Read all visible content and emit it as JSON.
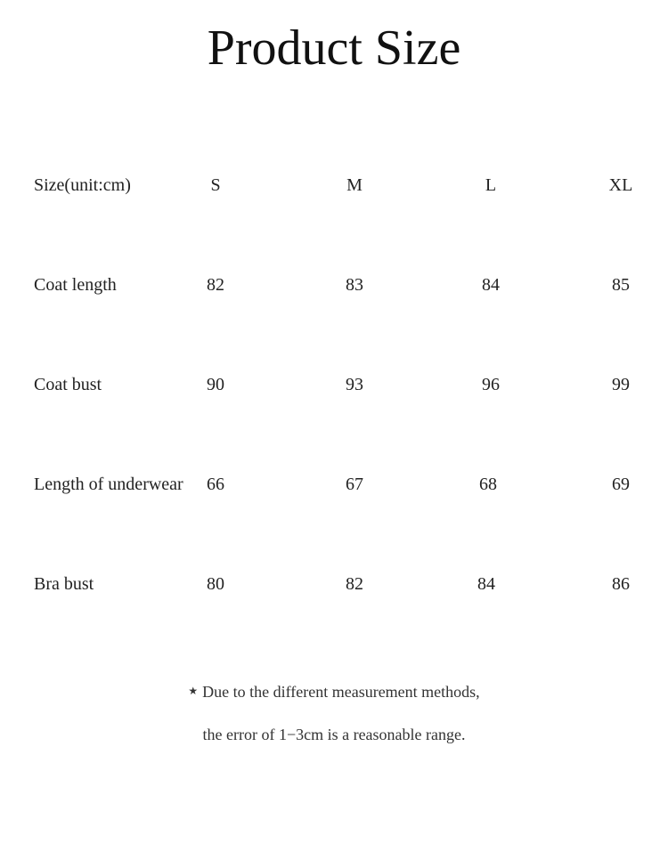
{
  "title": "Product Size",
  "table": {
    "header": {
      "label": "Size(unit:cm)",
      "sizes": [
        "S",
        "M",
        "L",
        "XL"
      ]
    },
    "rows": [
      {
        "label": "Coat length",
        "values": [
          "82",
          "83",
          "84",
          "85"
        ]
      },
      {
        "label": "Coat bust",
        "values": [
          "90",
          "93",
          "96",
          "99"
        ]
      },
      {
        "label": "Length of underwear",
        "values": [
          "66",
          "67",
          "68",
          "69"
        ]
      },
      {
        "label": "Bra bust",
        "values": [
          "80",
          "82",
          "84",
          "86"
        ]
      }
    ]
  },
  "note": {
    "star": "★",
    "line1": "Due to the different measurement methods,",
    "line2": "the error of 1−3cm is a reasonable range."
  }
}
